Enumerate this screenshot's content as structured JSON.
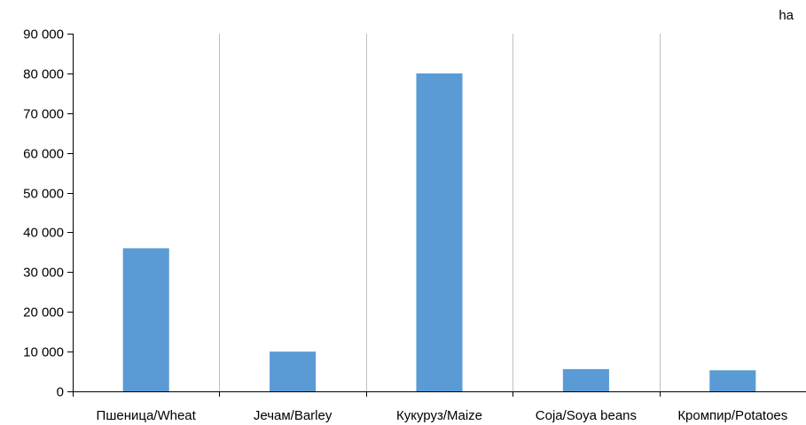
{
  "chart_data": {
    "type": "bar",
    "unit_label": "ha",
    "categories": [
      "Пшеница/Wheat",
      "Јечам/Barley",
      "Кукуруз/Maize",
      "Соја/Soya beans",
      "Кромпир/Potatoes"
    ],
    "values": [
      36000,
      10000,
      80000,
      5600,
      5300
    ],
    "ylim": [
      0,
      90000
    ],
    "yticks": [
      0,
      10000,
      20000,
      30000,
      40000,
      50000,
      60000,
      70000,
      80000,
      90000
    ],
    "ytick_labels": [
      "0",
      "10 000",
      "20 000",
      "30 000",
      "40 000",
      "50 000",
      "60 000",
      "70 000",
      "80 000",
      "90 000"
    ],
    "grid": "vertical",
    "bar_color": "#5b9bd5",
    "grid_color": "#bfbfbf"
  }
}
